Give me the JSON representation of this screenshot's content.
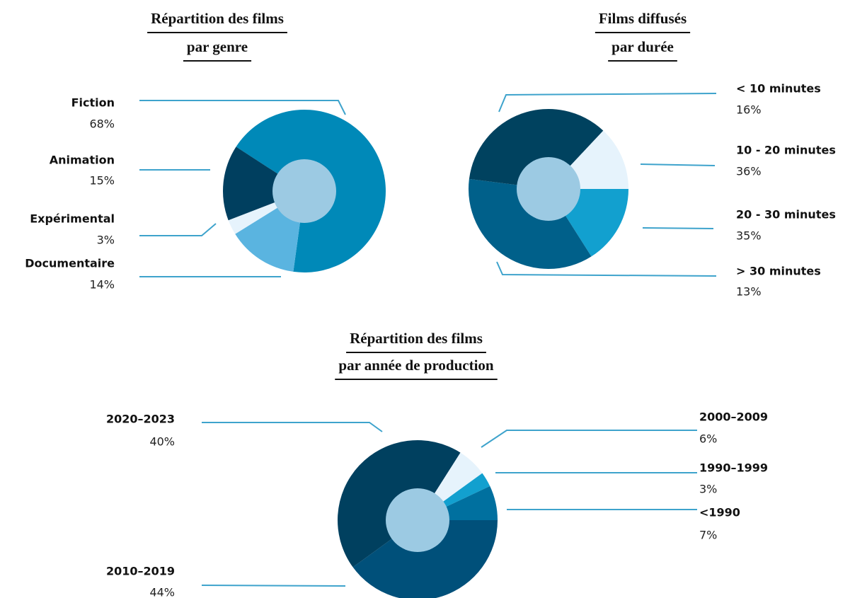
{
  "chart_data": [
    {
      "type": "pie",
      "title": "Répartition des films",
      "subtitle": "par genre",
      "categories": [
        "Fiction",
        "Animation",
        "Expérimental",
        "Documentaire"
      ],
      "values": [
        68,
        15,
        3,
        14
      ],
      "value_labels": [
        "68%",
        "15%",
        "3%",
        "14%"
      ],
      "colors": [
        "#0089b8",
        "#003f5f",
        "#e6f3fc",
        "#5ab4e0"
      ],
      "order": [
        0,
        3,
        2,
        1
      ],
      "start_angle": 303,
      "hole_color": "#9ccae3"
    },
    {
      "type": "pie",
      "title": "Films diffusés",
      "subtitle": "par durée",
      "categories": [
        "< 10 minutes",
        "10 - 20 minutes",
        "20 - 30 minutes",
        "> 30 minutes"
      ],
      "values": [
        16,
        36,
        35,
        13
      ],
      "value_labels": [
        "16%",
        "36%",
        "35%",
        "13%"
      ],
      "colors": [
        "#12a0cf",
        "#00608a",
        "#00425f",
        "#e6f3fc"
      ],
      "order": [
        0,
        1,
        2,
        3
      ],
      "start_angle": 90,
      "hole_color": "#9ccae3"
    },
    {
      "type": "pie",
      "title": "Répartition des films",
      "subtitle": "par année de production",
      "categories": [
        "2020–2023",
        "2010–2019",
        "2000–2009",
        "1990–1999",
        "<1990"
      ],
      "values": [
        40,
        44,
        6,
        3,
        7
      ],
      "value_labels": [
        "40%",
        "44%",
        "6%",
        "3%",
        "7%"
      ],
      "colors": [
        "#00507a",
        "#00405f",
        "#e6f3fc",
        "#12a0cf",
        "#00709f"
      ],
      "order": [
        0,
        1,
        2,
        3,
        4
      ],
      "start_angle": 90,
      "hole_color": "#9ccae3"
    }
  ]
}
